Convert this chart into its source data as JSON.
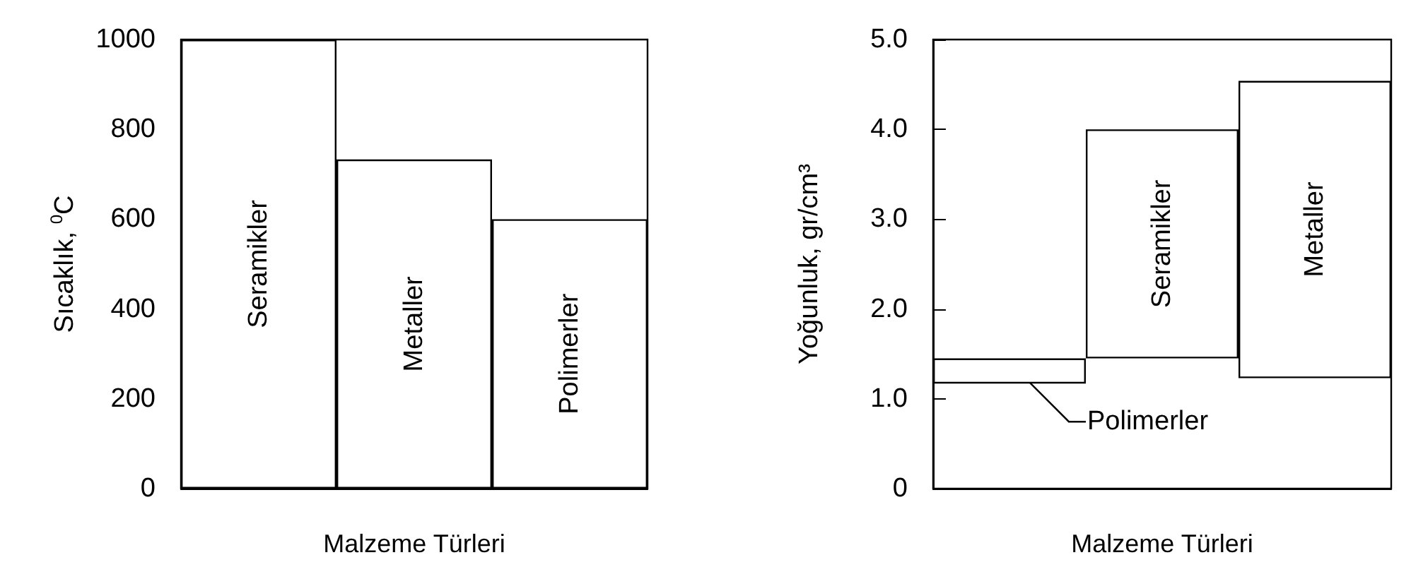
{
  "chart_data": [
    {
      "type": "bar",
      "xlabel": "Malzeme Türleri",
      "ylabel": "Sıcaklık, $^{0}$C",
      "categories": [
        "Seramikler",
        "Metaller",
        "Polimerler"
      ],
      "values": [
        1000,
        733,
        600
      ],
      "color": "#ffffff",
      "ylim": [
        0,
        1000
      ],
      "yticks": [
        0,
        200,
        400,
        600,
        800,
        1000
      ],
      "tick_labels": "y"
    },
    {
      "type": "bar",
      "xlabel": "Malzeme Türleri",
      "ylabel": "Yoğunluk, gr/cm³",
      "categories": [
        "Polimerler",
        "Seramikler",
        "Metaller"
      ],
      "base": [
        1.17,
        1.45,
        1.23
      ],
      "values": [
        0.28,
        2.55,
        3.31
      ],
      "color": "#ffffff",
      "ylim": [
        0,
        5
      ],
      "yticks": [
        0,
        {
          "value": 1,
          "label": "1.0"
        },
        {
          "value": 2,
          "label": "2.0"
        },
        {
          "value": 3,
          "label": "3.0"
        },
        {
          "value": 4,
          "label": "4.0"
        },
        {
          "value": 5,
          "label": "5.0"
        }
      ],
      "tick_labels": "y"
    }
  ]
}
